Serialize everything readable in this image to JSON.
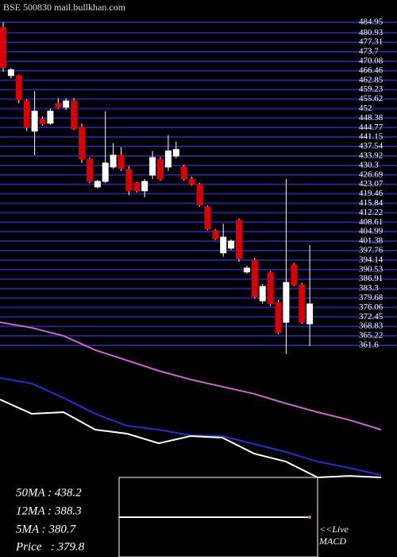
{
  "chart_data": [
    {
      "type": "candlestick",
      "title": "BSE 500830 mail.bullkhan.com",
      "up_color": "#ffffff",
      "down_color": "#dd0000",
      "grid_color": "#22229a",
      "grid": true,
      "ylim": [
        361.6,
        484.95
      ],
      "yticks": [
        484.95,
        480.93,
        477.31,
        473.7,
        470.08,
        466.46,
        462.85,
        459.23,
        455.62,
        452,
        448.38,
        444.77,
        441.15,
        437.54,
        433.92,
        430.3,
        426.69,
        423.07,
        419.46,
        415.84,
        412.22,
        408.61,
        404.99,
        401.38,
        397.76,
        394.14,
        390.53,
        386.91,
        383.3,
        379.68,
        376.06,
        372.45,
        368.83,
        365.22,
        361.6
      ],
      "open": [
        482.9,
        464.6,
        464.6,
        454.9,
        443.4,
        447.9,
        446.4,
        454.0,
        452.5,
        454.9,
        444.9,
        432.7,
        422.1,
        424.2,
        429.7,
        434.2,
        428.8,
        423.6,
        420.6,
        426.6,
        432.7,
        429.7,
        433.9,
        429.7,
        425.1,
        423.0,
        414.5,
        405.4,
        396.9,
        398.7,
        409.3,
        389.6,
        394.1,
        378.6,
        389.3,
        378.0,
        370.4,
        392.3,
        384.7,
        369.8
      ],
      "high": [
        484.95,
        467.5,
        465.0,
        455.5,
        458.6,
        449.0,
        452.0,
        456.0,
        456.0,
        456.0,
        446.4,
        433.3,
        424.8,
        451.0,
        438.8,
        437.3,
        430.0,
        424.0,
        425.1,
        435.8,
        433.5,
        441.8,
        439.4,
        430.5,
        426.0,
        423.6,
        415.0,
        406.0,
        408.0,
        402.0,
        410.0,
        392.0,
        395.0,
        385.0,
        390.0,
        379.0,
        425.1,
        393.0,
        385.5,
        399.9
      ],
      "low": [
        466.0,
        463.5,
        454.0,
        443.4,
        434.2,
        445.5,
        445.8,
        452.0,
        451.5,
        443.8,
        431.2,
        423.6,
        421.5,
        423.6,
        429.0,
        428.2,
        419.0,
        420.0,
        418.1,
        425.1,
        424.5,
        428.2,
        433.0,
        424.5,
        422.5,
        414.5,
        405.5,
        401.8,
        395.5,
        398.0,
        393.5,
        389.0,
        379.5,
        377.5,
        376.5,
        365.9,
        358.3,
        384.2,
        369.8,
        361.3
      ],
      "close": [
        467.7,
        466.8,
        455.5,
        444.9,
        451.0,
        446.1,
        451.0,
        452.5,
        454.9,
        444.3,
        432.7,
        424.2,
        424.2,
        431.2,
        434.2,
        429.1,
        420.6,
        420.6,
        424.2,
        433.3,
        425.1,
        435.8,
        436.4,
        425.1,
        423.0,
        415.1,
        406.0,
        402.3,
        402.9,
        401.4,
        394.7,
        391.1,
        380.1,
        384.1,
        377.4,
        366.5,
        385.6,
        384.7,
        370.4,
        377.4
      ]
    },
    {
      "type": "line",
      "ylim": [
        372.5,
        549.1
      ],
      "series": [
        {
          "name": "50MA : 438.2",
          "color": "#cc66cc",
          "values": [
            545.0,
            539.3,
            531.0,
            516.3,
            505.6,
            494.9,
            485.9,
            478.5,
            471.1,
            461.2,
            452.2,
            444.1,
            434.1
          ]
        },
        {
          "name": "12MA : 388.3",
          "color": "#2a2ad8",
          "values": [
            487.5,
            481.8,
            467.0,
            450.5,
            438.2,
            434.1,
            428.3,
            427.5,
            419.3,
            411.1,
            401.2,
            394.6,
            387.3
          ]
        },
        {
          "name": "5MA : 380.7",
          "color": "#ffffff",
          "values": [
            465.3,
            450.5,
            452.2,
            434.1,
            430.0,
            420.1,
            427.5,
            425.9,
            409.4,
            401.2,
            384.8,
            386.4,
            384.8
          ]
        }
      ],
      "price_label": "Price   : 379.8",
      "macd_label": "<<Live",
      "macd_title": "MACD"
    }
  ]
}
